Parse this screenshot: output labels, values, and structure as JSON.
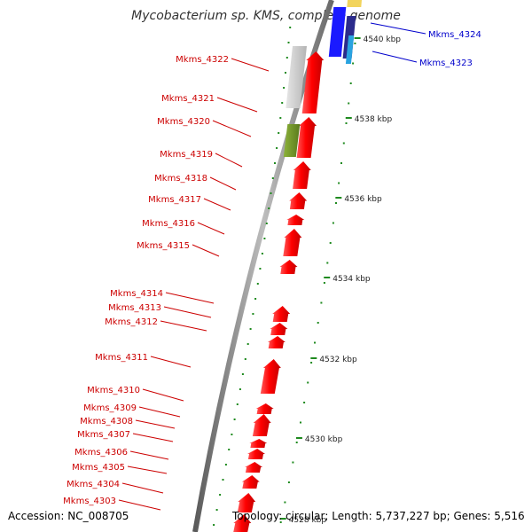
{
  "title": "Mycobacterium sp. KMS, complete genome",
  "accession": "Accession: NC_008705",
  "summary": "Topology: circular; Length: 5,737,227 bp; Genes: 5,516",
  "colors": {
    "forward_gene": "#ff0000",
    "gray_gene": "#c8c8c8",
    "olive_gene": "#6b8e23",
    "reverse_blue": "#1a1aff",
    "reverse_navy": "#2b2b8c",
    "reverse_cyan": "#29a3e0",
    "reverse_yellow": "#f2d45c",
    "label_red": "#cc0000",
    "label_blue": "#0000cc",
    "tick_green": "#1f8a1f",
    "backbone": "#808080"
  },
  "kbp_ticks": [
    {
      "label": "4540 kbp",
      "pos": 4540
    },
    {
      "label": "4538 kbp",
      "pos": 4538
    },
    {
      "label": "4536 kbp",
      "pos": 4536
    },
    {
      "label": "4534 kbp",
      "pos": 4534
    },
    {
      "label": "4532 kbp",
      "pos": 4532
    },
    {
      "label": "4530 kbp",
      "pos": 4530
    },
    {
      "label": "4528 kbp",
      "pos": 4528
    }
  ],
  "forward_genes": [
    {
      "label": "Mkms_4322"
    },
    {
      "label": "Mkms_4321"
    },
    {
      "label": "Mkms_4320"
    },
    {
      "label": "Mkms_4319"
    },
    {
      "label": "Mkms_4318"
    },
    {
      "label": "Mkms_4317"
    },
    {
      "label": "Mkms_4316"
    },
    {
      "label": "Mkms_4315"
    },
    {
      "label": "Mkms_4314"
    },
    {
      "label": "Mkms_4313"
    },
    {
      "label": "Mkms_4312"
    },
    {
      "label": "Mkms_4311"
    },
    {
      "label": "Mkms_4310"
    },
    {
      "label": "Mkms_4309"
    },
    {
      "label": "Mkms_4308"
    },
    {
      "label": "Mkms_4307"
    },
    {
      "label": "Mkms_4306"
    },
    {
      "label": "Mkms_4305"
    },
    {
      "label": "Mkms_4304"
    },
    {
      "label": "Mkms_4303"
    }
  ],
  "reverse_genes": [
    {
      "label": "Mkms_4324"
    },
    {
      "label": "Mkms_4323"
    }
  ]
}
